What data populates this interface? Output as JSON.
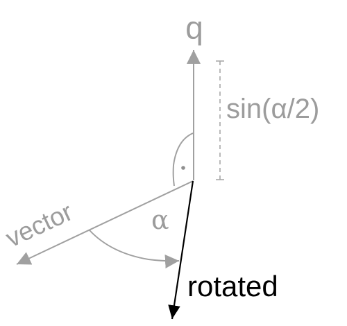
{
  "diagram": {
    "labels": {
      "axis": "q",
      "half_sine": "sin(α/2)",
      "input": "vector",
      "angle": "α",
      "output": "rotated"
    },
    "colors": {
      "primary_stroke": "#a0a0a0",
      "primary_text": "#9c9c9c",
      "output_stroke": "#000000",
      "output_text": "#000000"
    }
  }
}
